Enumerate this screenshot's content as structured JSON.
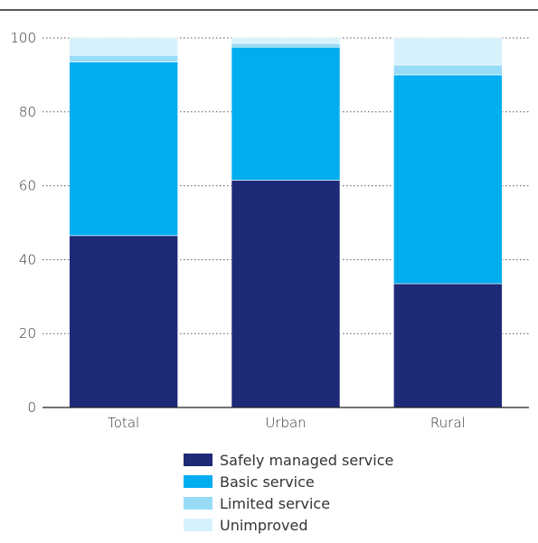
{
  "chart_data": {
    "type": "bar",
    "stacked": true,
    "categories": [
      "Total",
      "Urban",
      "Rural"
    ],
    "series": [
      {
        "name": "Safely managed service",
        "color": "#1e2a78",
        "values": [
          46.5,
          61.5,
          33.5
        ]
      },
      {
        "name": "Basic service",
        "color": "#00adef",
        "values": [
          47,
          36,
          56.5
        ]
      },
      {
        "name": "Limited service",
        "color": "#97dbf7",
        "values": [
          1.8,
          1,
          2.7
        ]
      },
      {
        "name": "Unimproved",
        "color": "#d6f1fc",
        "values": [
          4.7,
          1.5,
          7.3
        ]
      }
    ],
    "ylim": [
      0,
      100
    ],
    "yticks": [
      0,
      20,
      40,
      60,
      80,
      100
    ],
    "grid": "dotted",
    "legend": "bottom"
  }
}
